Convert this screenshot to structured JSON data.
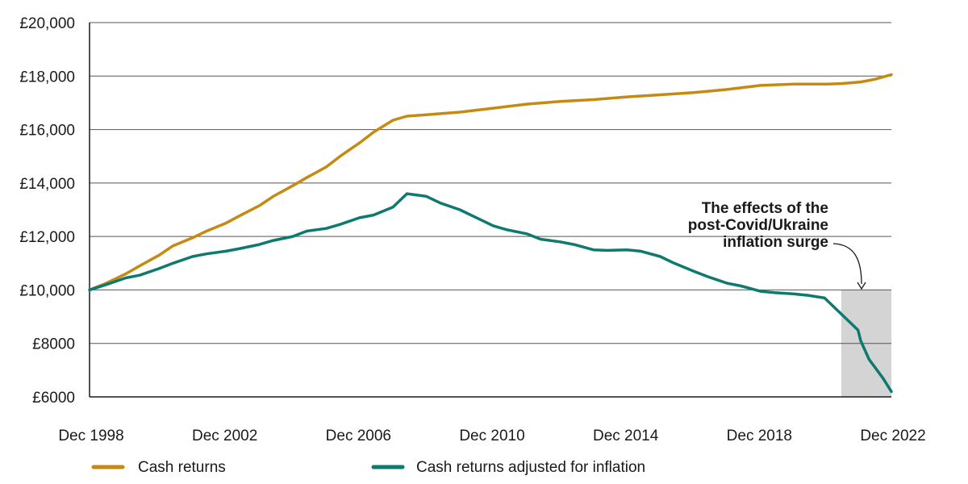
{
  "chart_data": {
    "type": "line",
    "title": "",
    "xlabel": "",
    "ylabel": "",
    "x_ticks": [
      "Dec 1998",
      "Dec 2002",
      "Dec 2006",
      "Dec 2010",
      "Dec 2014",
      "Dec 2018",
      "Dec 2022"
    ],
    "y_ticks": [
      "£6000",
      "£8000",
      "£10,000",
      "£12,000",
      "£14,000",
      "£16,000",
      "£18,000",
      "£20,000"
    ],
    "xlim": [
      "1998-12",
      "2022-12"
    ],
    "ylim": [
      6000,
      20000
    ],
    "grid": "horizontal",
    "legend_position": "bottom",
    "series": [
      {
        "name": "Cash returns",
        "color": "#c48a12",
        "points": [
          [
            "1998-12",
            10000
          ],
          [
            "1999-06",
            10250
          ],
          [
            "2000-01",
            10600
          ],
          [
            "2000-06",
            10900
          ],
          [
            "2001-01",
            11300
          ],
          [
            "2001-06",
            11650
          ],
          [
            "2002-01",
            11950
          ],
          [
            "2002-06",
            12200
          ],
          [
            "2003-01",
            12500
          ],
          [
            "2003-06",
            12780
          ],
          [
            "2004-01",
            13150
          ],
          [
            "2004-06",
            13500
          ],
          [
            "2005-01",
            13900
          ],
          [
            "2005-06",
            14200
          ],
          [
            "2006-01",
            14600
          ],
          [
            "2006-06",
            15000
          ],
          [
            "2007-01",
            15500
          ],
          [
            "2007-06",
            15900
          ],
          [
            "2008-01",
            16350
          ],
          [
            "2008-06",
            16500
          ],
          [
            "2009-01",
            16550
          ],
          [
            "2010-01",
            16650
          ],
          [
            "2011-01",
            16800
          ],
          [
            "2012-01",
            16950
          ],
          [
            "2013-01",
            17050
          ],
          [
            "2014-01",
            17120
          ],
          [
            "2015-01",
            17220
          ],
          [
            "2016-01",
            17300
          ],
          [
            "2017-01",
            17380
          ],
          [
            "2018-01",
            17500
          ],
          [
            "2019-01",
            17650
          ],
          [
            "2020-01",
            17700
          ],
          [
            "2021-01",
            17700
          ],
          [
            "2021-06",
            17720
          ],
          [
            "2022-01",
            17780
          ],
          [
            "2022-06",
            17880
          ],
          [
            "2022-12",
            18050
          ]
        ]
      },
      {
        "name": "Cash returns adjusted for inflation",
        "color": "#0e7a6f",
        "points": [
          [
            "1998-12",
            10000
          ],
          [
            "1999-06",
            10200
          ],
          [
            "2000-01",
            10450
          ],
          [
            "2000-06",
            10550
          ],
          [
            "2001-01",
            10800
          ],
          [
            "2001-06",
            11000
          ],
          [
            "2002-01",
            11250
          ],
          [
            "2002-06",
            11350
          ],
          [
            "2003-01",
            11450
          ],
          [
            "2003-06",
            11550
          ],
          [
            "2004-01",
            11700
          ],
          [
            "2004-06",
            11850
          ],
          [
            "2005-01",
            12000
          ],
          [
            "2005-06",
            12200
          ],
          [
            "2006-01",
            12300
          ],
          [
            "2006-06",
            12450
          ],
          [
            "2007-01",
            12700
          ],
          [
            "2007-06",
            12800
          ],
          [
            "2008-01",
            13100
          ],
          [
            "2008-06",
            13600
          ],
          [
            "2009-01",
            13500
          ],
          [
            "2009-06",
            13250
          ],
          [
            "2010-01",
            13000
          ],
          [
            "2010-06",
            12750
          ],
          [
            "2011-01",
            12400
          ],
          [
            "2011-06",
            12250
          ],
          [
            "2012-01",
            12100
          ],
          [
            "2012-06",
            11900
          ],
          [
            "2013-01",
            11800
          ],
          [
            "2013-06",
            11700
          ],
          [
            "2014-01",
            11500
          ],
          [
            "2014-06",
            11480
          ],
          [
            "2015-01",
            11500
          ],
          [
            "2015-06",
            11450
          ],
          [
            "2016-01",
            11250
          ],
          [
            "2016-06",
            11000
          ],
          [
            "2017-01",
            10700
          ],
          [
            "2017-06",
            10500
          ],
          [
            "2018-01",
            10250
          ],
          [
            "2018-06",
            10150
          ],
          [
            "2019-01",
            9950
          ],
          [
            "2019-06",
            9900
          ],
          [
            "2020-01",
            9850
          ],
          [
            "2020-06",
            9800
          ],
          [
            "2020-12",
            9700
          ],
          [
            "2021-06",
            9100
          ],
          [
            "2021-12",
            8500
          ],
          [
            "2022-01",
            8100
          ],
          [
            "2022-04",
            7400
          ],
          [
            "2022-09",
            6700
          ],
          [
            "2022-12",
            6200
          ]
        ]
      }
    ],
    "annotation": {
      "lines": [
        "The effects of the",
        "post-Covid/Ukraine",
        "inflation surge"
      ],
      "shaded_region": {
        "x_start": "2021-06",
        "x_end": "2022-12",
        "y_start": 6000,
        "y_end": 10000
      }
    }
  },
  "style": {
    "grid_color": "#555555",
    "axis_color": "#1a1a1a",
    "shade_color": "#d4d4d4"
  }
}
